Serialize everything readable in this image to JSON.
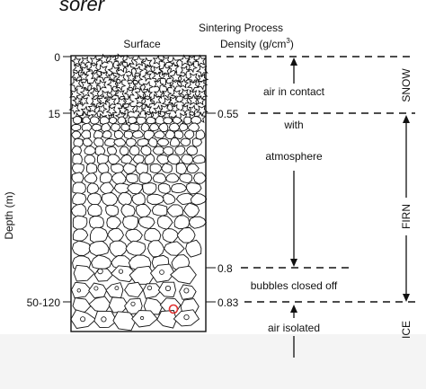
{
  "header": {
    "cropped_text": "sorer",
    "title": "Sintering Process",
    "surface_label": "Surface",
    "density_label": "Density (g/cm",
    "density_sup": "3",
    "density_close": ")"
  },
  "depth_axis": {
    "label": "Depth (m)",
    "ticks": [
      "0",
      "15",
      "50-120"
    ]
  },
  "densities": [
    "0.55",
    "0.8",
    "0.83"
  ],
  "annotations": {
    "air_in_contact": "air in contact",
    "with": "with",
    "atmosphere": "atmosphere",
    "bubbles_closed_off": "bubbles closed off",
    "air_isolated": "air isolated"
  },
  "zones": [
    "SNOW",
    "FIRN",
    "ICE"
  ],
  "colors": {
    "ink": "#111111",
    "marker": "#e03030",
    "band": "#f4f4f4"
  }
}
